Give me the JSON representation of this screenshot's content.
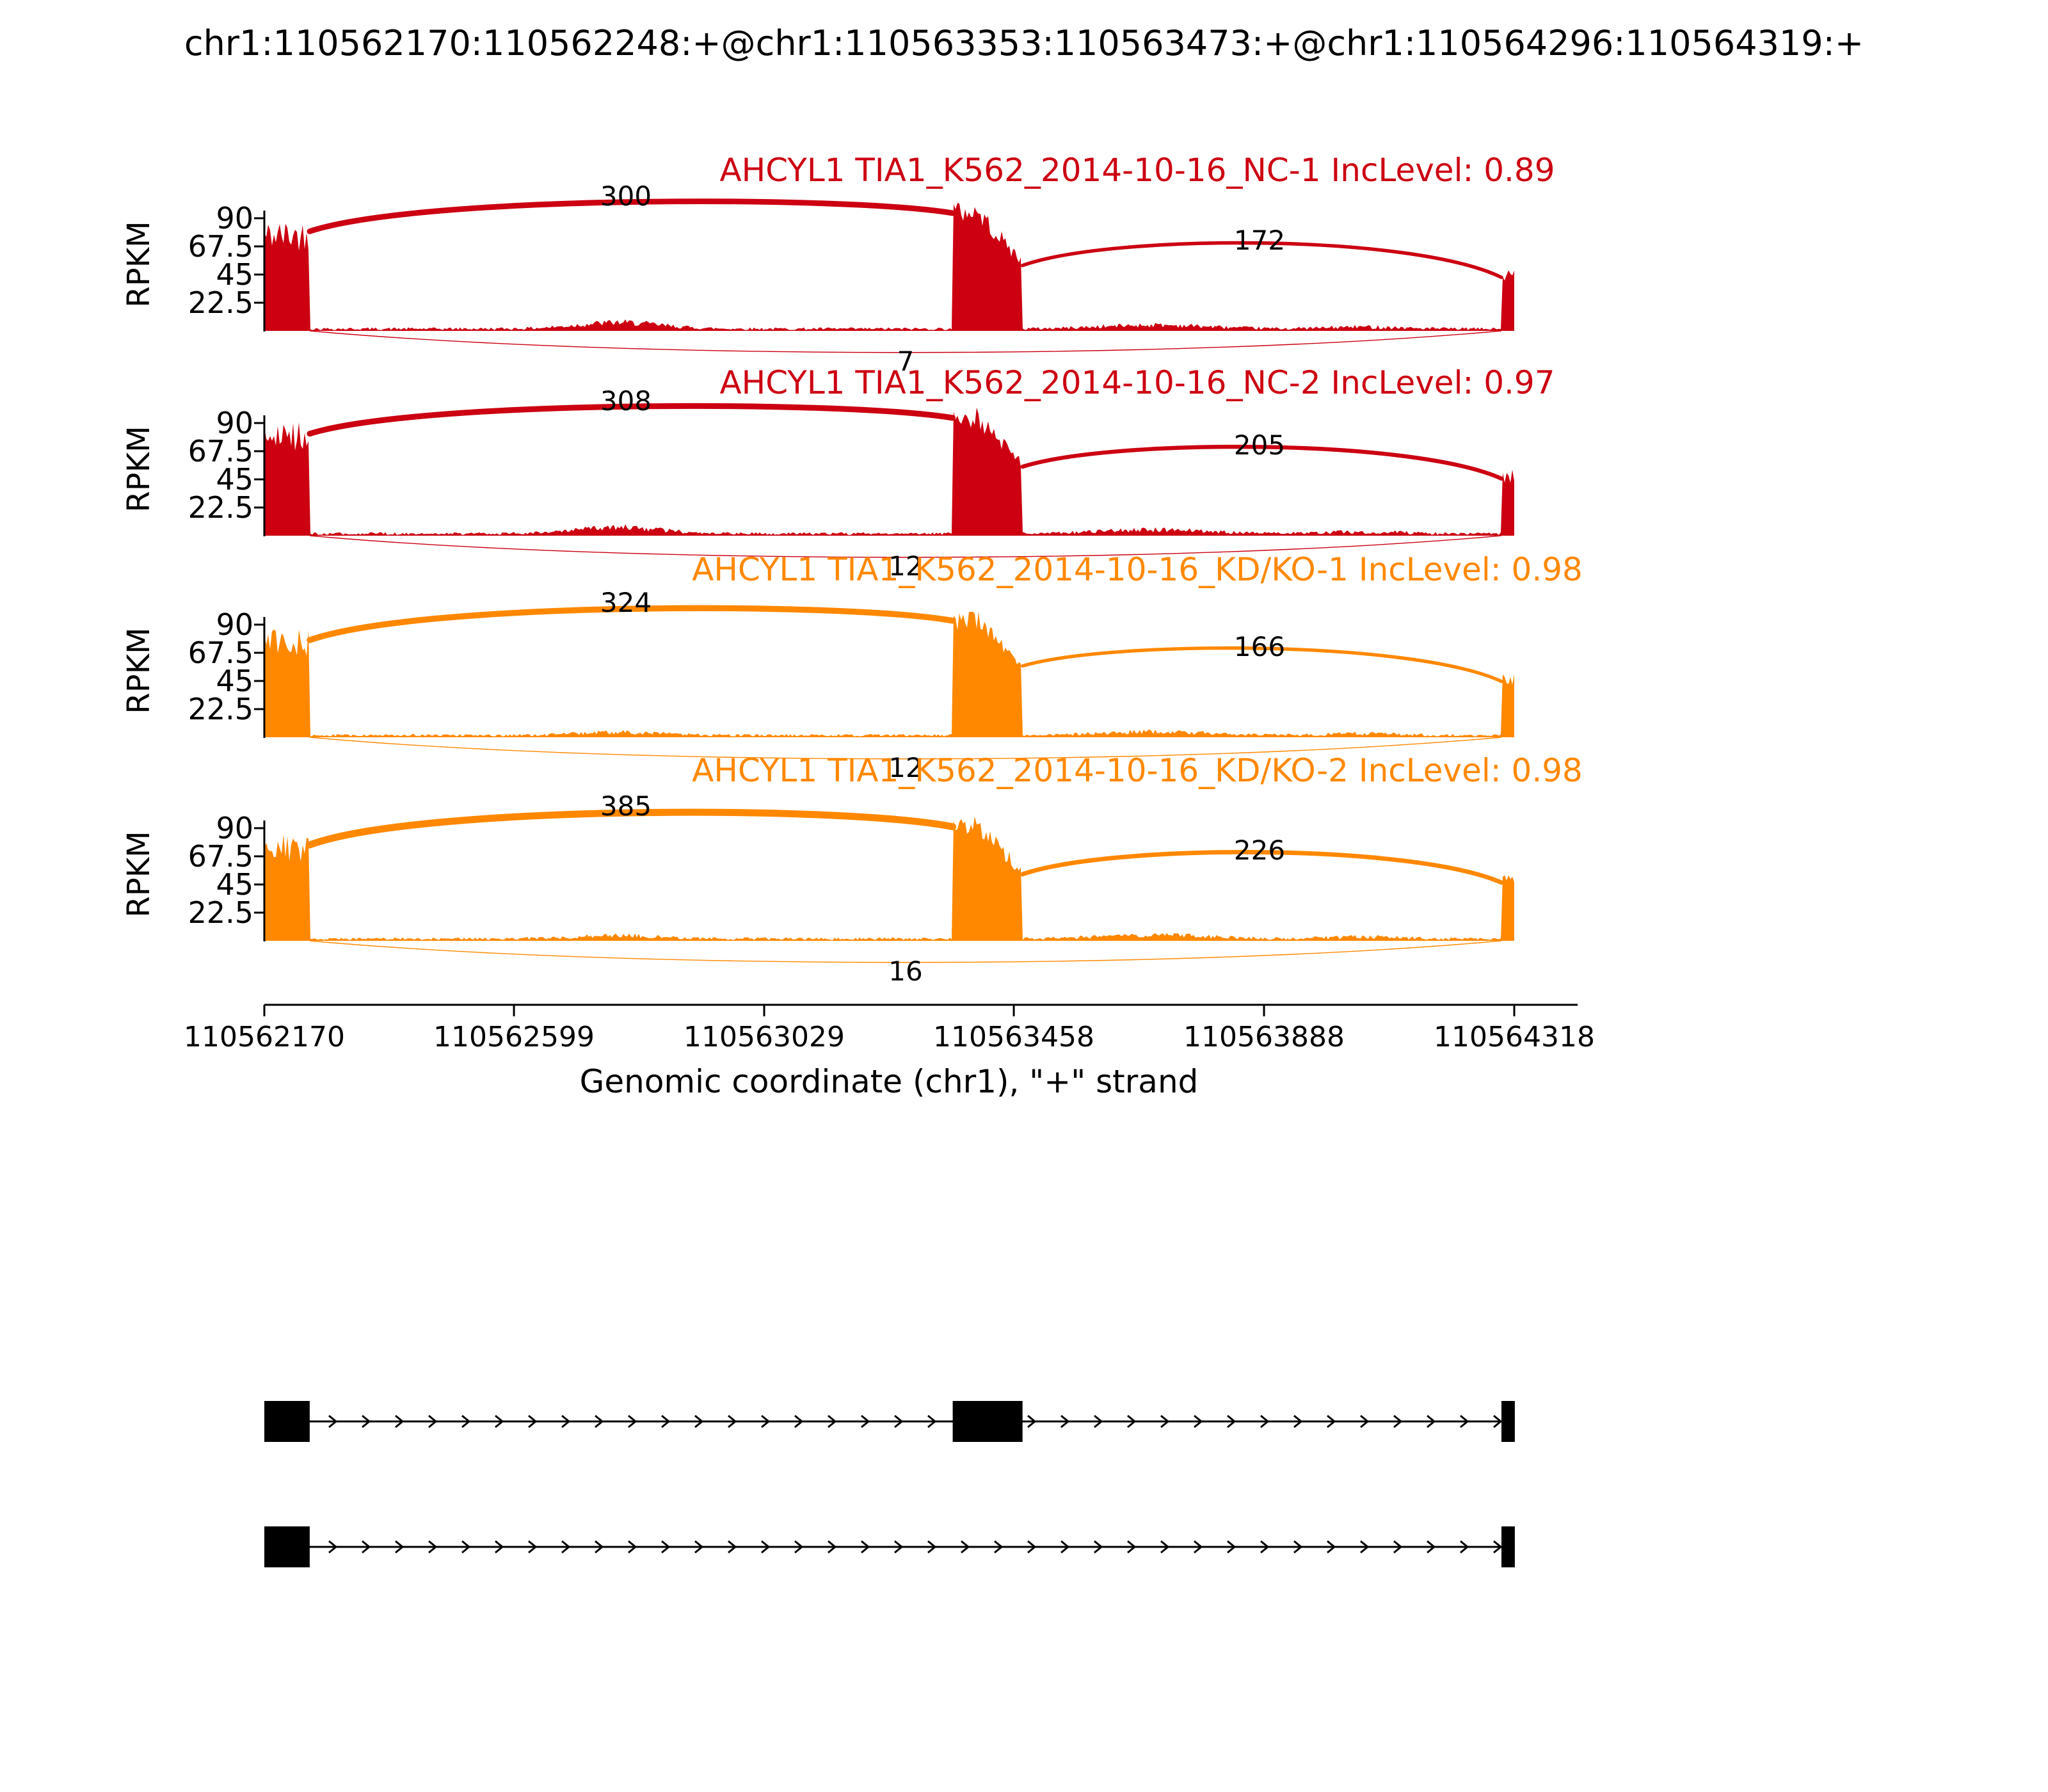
{
  "title": "chr1:110562170:110562248:+@chr1:110563353:110563473:+@chr1:110564296:110564319:+",
  "chart_data": {
    "type": "sashimi",
    "ylabel": "RPKM",
    "xlabel": "Genomic coordinate (chr1), \"+\" strand",
    "strand": "+",
    "x_range": [
      110562170,
      110564318
    ],
    "x_ticks": [
      110562170,
      110562599,
      110563029,
      110563458,
      110563888,
      110564318
    ],
    "y_ticks": [
      90,
      67.5,
      45,
      22.5
    ],
    "exons": [
      {
        "start": 110562170,
        "end": 110562248
      },
      {
        "start": 110563353,
        "end": 110563473
      },
      {
        "start": 110564296,
        "end": 110564319
      }
    ],
    "tracks": [
      {
        "label": "AHCYL1 TIA1_K562_2014-10-16_NC-1 IncLevel: 0.89",
        "color": "#CC0011",
        "inc_level": 0.89,
        "junctions": [
          {
            "from": 110562248,
            "to": 110563353,
            "count": 300,
            "arc": "top"
          },
          {
            "from": 110563473,
            "to": 110564296,
            "count": 172,
            "arc": "top"
          },
          {
            "from": 110562248,
            "to": 110564296,
            "count": 7,
            "arc": "bottom"
          }
        ],
        "coverage_rpkm": {
          "exon1": 82,
          "exon2_start": 96,
          "exon2_end": 55,
          "exon3": 45,
          "intron": 1.4
        }
      },
      {
        "label": "AHCYL1 TIA1_K562_2014-10-16_NC-2 IncLevel: 0.97",
        "color": "#CC0011",
        "inc_level": 0.97,
        "junctions": [
          {
            "from": 110562248,
            "to": 110563353,
            "count": 308,
            "arc": "top"
          },
          {
            "from": 110563473,
            "to": 110564296,
            "count": 205,
            "arc": "top"
          },
          {
            "from": 110562248,
            "to": 110564296,
            "count": 12,
            "arc": "bottom"
          }
        ],
        "coverage_rpkm": {
          "exon1": 84,
          "exon2_start": 96,
          "exon2_end": 58,
          "exon3": 48,
          "intron": 1.4
        }
      },
      {
        "label": "AHCYL1 TIA1_K562_2014-10-16_KD/KO-1 IncLevel: 0.98",
        "color": "#FF8800",
        "inc_level": 0.98,
        "junctions": [
          {
            "from": 110562248,
            "to": 110563353,
            "count": 324,
            "arc": "top"
          },
          {
            "from": 110563473,
            "to": 110564296,
            "count": 166,
            "arc": "top"
          },
          {
            "from": 110562248,
            "to": 110564296,
            "count": 12,
            "arc": "bottom"
          }
        ],
        "coverage_rpkm": {
          "exon1": 80,
          "exon2_start": 95,
          "exon2_end": 60,
          "exon3": 47,
          "intron": 1.3
        }
      },
      {
        "label": "AHCYL1 TIA1_K562_2014-10-16_KD/KO-2 IncLevel: 0.98",
        "color": "#FF8800",
        "inc_level": 0.98,
        "junctions": [
          {
            "from": 110562248,
            "to": 110563353,
            "count": 385,
            "arc": "top"
          },
          {
            "from": 110563473,
            "to": 110564296,
            "count": 226,
            "arc": "top"
          },
          {
            "from": 110562248,
            "to": 110564296,
            "count": 16,
            "arc": "bottom"
          }
        ],
        "coverage_rpkm": {
          "exon1": 79,
          "exon2_start": 93,
          "exon2_end": 56,
          "exon3": 49,
          "intron": 1.4
        }
      }
    ],
    "isoforms": [
      {
        "exons": [
          [
            110562170,
            110562248
          ],
          [
            110563353,
            110563473
          ],
          [
            110564296,
            110564319
          ]
        ],
        "strand": "+"
      },
      {
        "exons": [
          [
            110562170,
            110562248
          ],
          [
            110564296,
            110564319
          ]
        ],
        "strand": "+"
      }
    ]
  }
}
